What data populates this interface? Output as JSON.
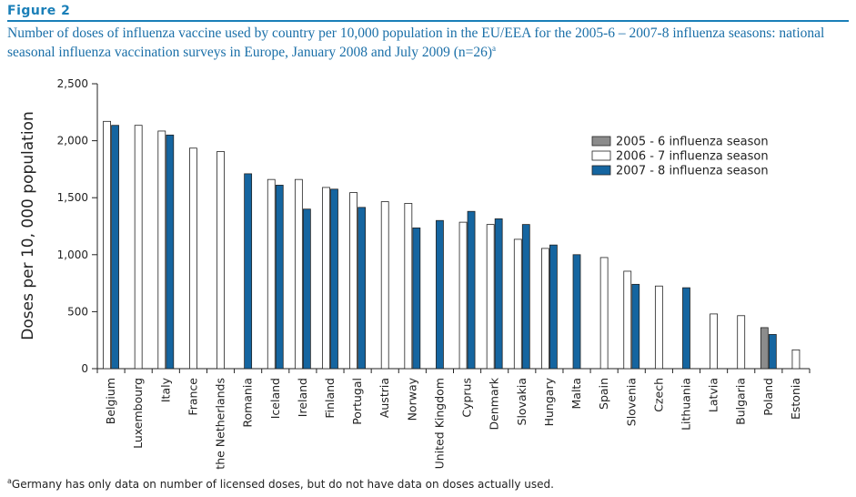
{
  "figure_label": "Figure 2",
  "caption_main": "Number of doses of influenza vaccine used by country per 10,000 population in the EU/EEA for the 2005-6 – 2007-8 influenza seasons: national seasonal influenza vaccination surveys in Europe, January 2008 and July 2009 (n=26)",
  "caption_marker": "a",
  "footnote_marker": "a",
  "footnote_text": "Germany has only data on number of licensed doses, but do not have data on doses actually used.",
  "chart_data": {
    "type": "bar",
    "ylabel": "Doses per 10, 000 population",
    "ylim": [
      0,
      2500
    ],
    "yticks": [
      0,
      500,
      1000,
      1500,
      2000,
      2500
    ],
    "ytick_labels": [
      "0",
      "500",
      "1,000",
      "1,500",
      "2,000",
      "2,500"
    ],
    "legend_position": "top-right",
    "categories": [
      "Belgium",
      "Luxembourg",
      "Italy",
      "France",
      "the Netherlands",
      "Romania",
      "Iceland",
      "Ireland",
      "Finland",
      "Portugal",
      "Austria",
      "Norway",
      "United Kingdom",
      "Cyprus",
      "Denmark",
      "Slovakia",
      "Hungary",
      "Malta",
      "Spain",
      "Slovenia",
      "Czech",
      "Lithuania",
      "Latvia",
      "Bulgaria",
      "Poland",
      "Estonia"
    ],
    "series": [
      {
        "name": "2005 - 6 influenza season",
        "color": "#8c8c8c",
        "values": [
          null,
          null,
          null,
          null,
          null,
          null,
          null,
          null,
          null,
          null,
          null,
          null,
          null,
          null,
          null,
          null,
          null,
          null,
          null,
          null,
          null,
          null,
          null,
          null,
          360,
          null
        ]
      },
      {
        "name": "2006 - 7 influenza season",
        "color": "#ffffff",
        "values": [
          2170,
          2135,
          2085,
          1935,
          1905,
          null,
          1660,
          1660,
          1590,
          1545,
          1465,
          1450,
          null,
          1285,
          1265,
          1135,
          1055,
          null,
          975,
          855,
          725,
          null,
          480,
          465,
          null,
          165
        ]
      },
      {
        "name": "2007 - 8 influenza season",
        "color": "#1565a0",
        "values": [
          2135,
          null,
          2050,
          null,
          null,
          1710,
          1610,
          1400,
          1575,
          1415,
          null,
          1235,
          1300,
          1380,
          1315,
          1265,
          1085,
          1000,
          null,
          740,
          null,
          710,
          null,
          null,
          300,
          null
        ]
      }
    ]
  }
}
